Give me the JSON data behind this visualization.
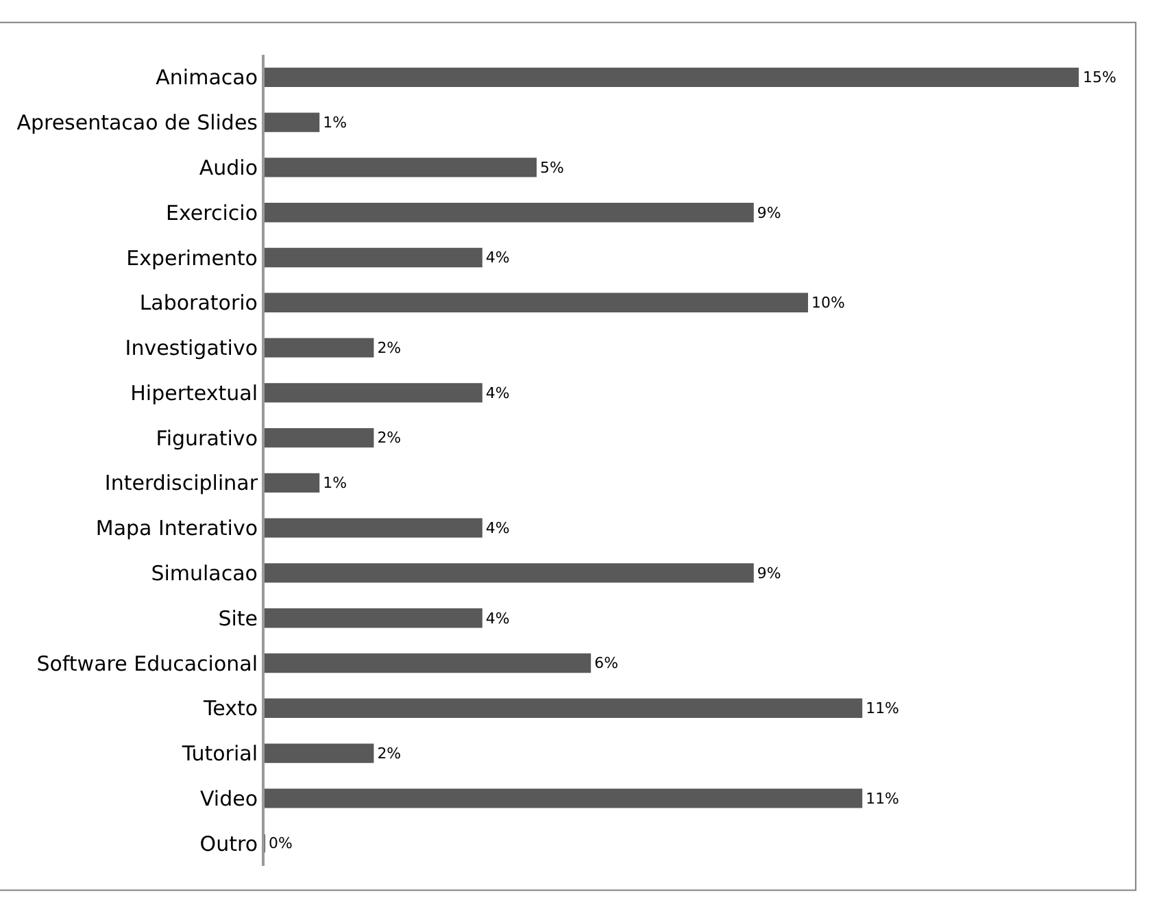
{
  "chart_data": {
    "type": "bar",
    "orientation": "horizontal",
    "categories": [
      "Animacao",
      "Apresentacao de Slides",
      "Audio",
      "Exercicio",
      "Experimento",
      "Laboratorio",
      "Investigativo",
      "Hipertextual",
      "Figurativo",
      "Interdisciplinar",
      "Mapa Interativo",
      "Simulacao",
      "Site",
      "Software Educacional",
      "Texto",
      "Tutorial",
      "Video",
      "Outro"
    ],
    "values": [
      15,
      1,
      5,
      9,
      4,
      10,
      2,
      4,
      2,
      1,
      4,
      9,
      4,
      6,
      11,
      2,
      11,
      0
    ],
    "value_labels": [
      "15%",
      "1%",
      "5%",
      "9%",
      "4%",
      "10%",
      "2%",
      "4%",
      "2%",
      "1%",
      "4%",
      "9%",
      "4%",
      "6%",
      "11%",
      "2%",
      "11%",
      "0%"
    ],
    "color": "#595959",
    "xlim": [
      0,
      15
    ],
    "tick_labels": "y"
  }
}
